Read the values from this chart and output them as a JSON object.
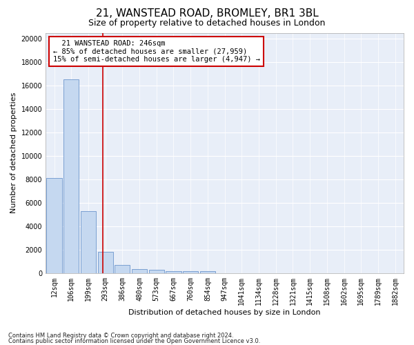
{
  "title": "21, WANSTEAD ROAD, BROMLEY, BR1 3BL",
  "subtitle": "Size of property relative to detached houses in London",
  "xlabel": "Distribution of detached houses by size in London",
  "ylabel": "Number of detached properties",
  "footnote1": "Contains HM Land Registry data © Crown copyright and database right 2024.",
  "footnote2": "Contains public sector information licensed under the Open Government Licence v3.0.",
  "annotation_line1": "21 WANSTEAD ROAD: 246sqm",
  "annotation_line2": "← 85% of detached houses are smaller (27,959)",
  "annotation_line3": "15% of semi-detached houses are larger (4,947) →",
  "bar_labels": [
    "12sqm",
    "106sqm",
    "199sqm",
    "293sqm",
    "386sqm",
    "480sqm",
    "573sqm",
    "667sqm",
    "760sqm",
    "854sqm",
    "947sqm",
    "1041sqm",
    "1134sqm",
    "1228sqm",
    "1321sqm",
    "1415sqm",
    "1508sqm",
    "1602sqm",
    "1695sqm",
    "1789sqm",
    "1882sqm"
  ],
  "bar_values": [
    8100,
    16500,
    5300,
    1850,
    700,
    370,
    280,
    200,
    175,
    150,
    0,
    0,
    0,
    0,
    0,
    0,
    0,
    0,
    0,
    0,
    0
  ],
  "bar_color": "#c5d8f0",
  "bar_edge_color": "#5585c5",
  "vline_x": 2.85,
  "vline_color": "#cc0000",
  "ylim": [
    0,
    20500
  ],
  "yticks": [
    0,
    2000,
    4000,
    6000,
    8000,
    10000,
    12000,
    14000,
    16000,
    18000,
    20000
  ],
  "background_color": "#e8eef8",
  "grid_color": "#ffffff",
  "fig_background": "#ffffff",
  "title_fontsize": 11,
  "subtitle_fontsize": 9,
  "axis_label_fontsize": 8,
  "tick_fontsize": 7,
  "annotation_fontsize": 7.5
}
